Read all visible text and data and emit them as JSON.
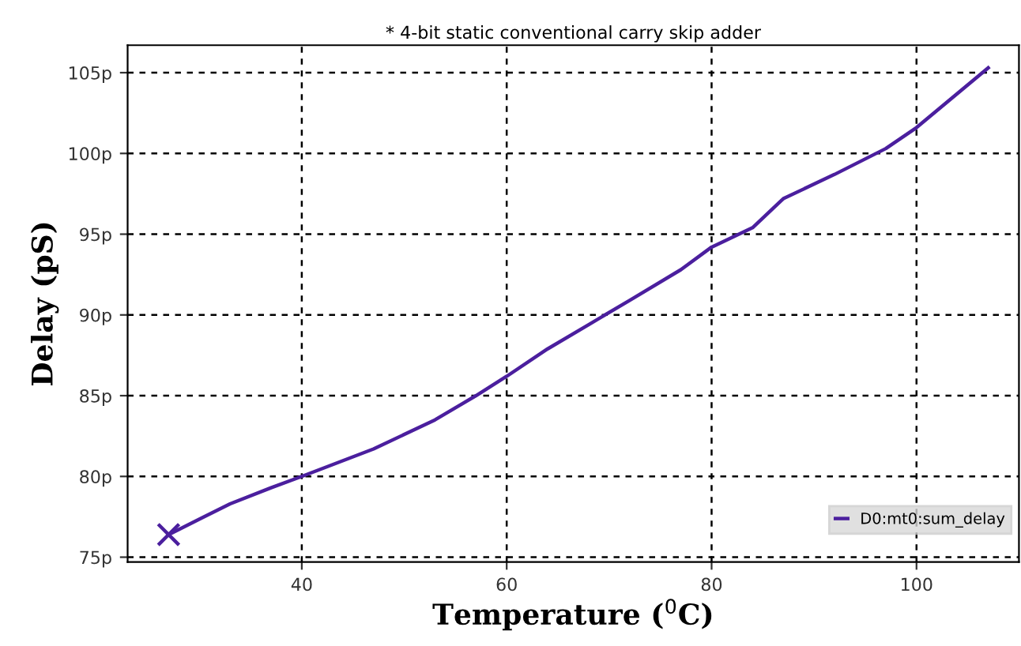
{
  "chart_data": {
    "type": "line",
    "title": "* 4-bit static conventional carry skip adder",
    "xlabel": "Temperature ($^{0}$C)",
    "ylabel": "Delay (pS)",
    "xlim": [
      23,
      110
    ],
    "ylim": [
      74.7,
      106.7
    ],
    "xticks": [
      40,
      60,
      80,
      100
    ],
    "yticks": [
      {
        "value": 75,
        "label": "75p"
      },
      {
        "value": 80,
        "label": "80p"
      },
      {
        "value": 85,
        "label": "85p"
      },
      {
        "value": 90,
        "label": "90p"
      },
      {
        "value": 95,
        "label": "95p"
      },
      {
        "value": 100,
        "label": "100p"
      },
      {
        "value": 105,
        "label": "105p"
      }
    ],
    "grid": true,
    "legend": "bottom right",
    "marker": "none",
    "series": [
      {
        "name": "D0:mt0:sum_delay",
        "color": "#4b1f9e",
        "x": [
          27,
          33,
          37,
          40,
          47,
          53,
          57,
          60,
          64,
          68,
          72,
          77,
          80,
          84,
          87,
          92,
          97,
          100,
          107
        ],
        "values": [
          76.4,
          78.3,
          79.3,
          80,
          81.7,
          83.5,
          85,
          86.2,
          87.9,
          89.4,
          90.9,
          92.8,
          94.2,
          95.4,
          97.2,
          98.7,
          100.3,
          101.6,
          105.3
        ]
      },
      {
        "type": "scatter",
        "marker": "cross",
        "color": "#4b1f9e",
        "x": [
          27
        ],
        "values": [
          76.4
        ]
      }
    ]
  }
}
